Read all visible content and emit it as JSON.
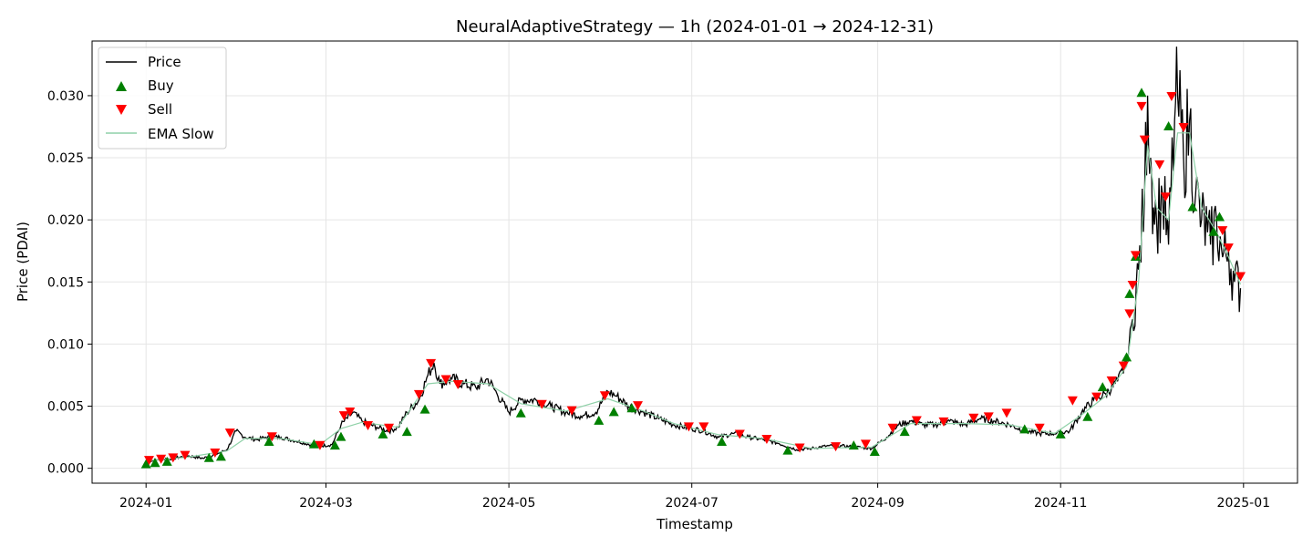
{
  "chart_data": {
    "type": "line",
    "title": "NeuralAdaptiveStrategy — 1h (2024-01-01 → 2024-12-31)",
    "xlabel": "Timestamp",
    "ylabel": "Price (PDAI)",
    "x_range": [
      "2023-12-14",
      "2025-01-19"
    ],
    "ylim": [
      -0.0012,
      0.0344
    ],
    "x_ticks": [
      "2024-01-01",
      "2024-03-01",
      "2024-05-01",
      "2024-07-01",
      "2024-09-01",
      "2024-11-01",
      "2025-01-01"
    ],
    "x_tick_labels": [
      "2024-01",
      "2024-03",
      "2024-05",
      "2024-07",
      "2024-09",
      "2024-11",
      "2025-01"
    ],
    "y_ticks": [
      0.0,
      0.005,
      0.01,
      0.015,
      0.02,
      0.025,
      0.03
    ],
    "y_tick_labels": [
      "0.000",
      "0.005",
      "0.010",
      "0.015",
      "0.020",
      "0.025",
      "0.030"
    ],
    "grid": true,
    "legend_position": "top-left",
    "legend": [
      {
        "label": "Price",
        "kind": "line",
        "color": "#000000"
      },
      {
        "label": "Buy",
        "kind": "marker-up",
        "color": "#008000"
      },
      {
        "label": "Sell",
        "kind": "marker-down",
        "color": "#ff0000"
      },
      {
        "label": "EMA Slow",
        "kind": "line",
        "color": "#8fd1a8"
      }
    ],
    "colors": {
      "price": "#000000",
      "buy": "#008000",
      "sell": "#ff0000",
      "ema": "#8fd1a8"
    },
    "price_series": {
      "name": "Price",
      "x": [
        "2024-01-01",
        "2024-01-05",
        "2024-01-10",
        "2024-01-15",
        "2024-01-20",
        "2024-01-25",
        "2024-01-28",
        "2024-01-31",
        "2024-02-03",
        "2024-02-07",
        "2024-02-10",
        "2024-02-15",
        "2024-02-20",
        "2024-02-25",
        "2024-02-28",
        "2024-03-03",
        "2024-03-06",
        "2024-03-10",
        "2024-03-13",
        "2024-03-18",
        "2024-03-22",
        "2024-03-25",
        "2024-03-28",
        "2024-04-01",
        "2024-04-04",
        "2024-04-06",
        "2024-04-08",
        "2024-04-12",
        "2024-04-16",
        "2024-04-20",
        "2024-04-24",
        "2024-04-27",
        "2024-05-01",
        "2024-05-05",
        "2024-05-10",
        "2024-05-15",
        "2024-05-20",
        "2024-05-25",
        "2024-05-30",
        "2024-06-03",
        "2024-06-06",
        "2024-06-10",
        "2024-06-15",
        "2024-06-20",
        "2024-06-25",
        "2024-07-01",
        "2024-07-05",
        "2024-07-10",
        "2024-07-15",
        "2024-07-20",
        "2024-07-25",
        "2024-07-30",
        "2024-08-05",
        "2024-08-10",
        "2024-08-15",
        "2024-08-20",
        "2024-08-25",
        "2024-08-30",
        "2024-09-04",
        "2024-09-08",
        "2024-09-12",
        "2024-09-16",
        "2024-09-20",
        "2024-09-25",
        "2024-09-30",
        "2024-10-05",
        "2024-10-10",
        "2024-10-15",
        "2024-10-20",
        "2024-10-25",
        "2024-10-30",
        "2024-11-04",
        "2024-11-08",
        "2024-11-12",
        "2024-11-16",
        "2024-11-20",
        "2024-11-23",
        "2024-11-25",
        "2024-11-27",
        "2024-11-29",
        "2024-11-30",
        "2024-12-01",
        "2024-12-02",
        "2024-12-03",
        "2024-12-05",
        "2024-12-07",
        "2024-12-09",
        "2024-12-10",
        "2024-12-12",
        "2024-12-14",
        "2024-12-16",
        "2024-12-18",
        "2024-12-20",
        "2024-12-21",
        "2024-12-23",
        "2024-12-25",
        "2024-12-27",
        "2024-12-29",
        "2024-12-31"
      ],
      "values": [
        0.0005,
        0.0007,
        0.0008,
        0.001,
        0.0008,
        0.0012,
        0.0015,
        0.003,
        0.0025,
        0.0023,
        0.0025,
        0.0025,
        0.0022,
        0.0019,
        0.0018,
        0.0019,
        0.0035,
        0.0045,
        0.0038,
        0.0033,
        0.003,
        0.0033,
        0.0045,
        0.0055,
        0.0075,
        0.0085,
        0.0068,
        0.0072,
        0.0068,
        0.0065,
        0.0072,
        0.006,
        0.0045,
        0.0055,
        0.0055,
        0.005,
        0.0045,
        0.0042,
        0.0045,
        0.0062,
        0.0058,
        0.005,
        0.0045,
        0.004,
        0.0035,
        0.0032,
        0.003,
        0.0025,
        0.0028,
        0.0025,
        0.0023,
        0.002,
        0.0015,
        0.0016,
        0.0018,
        0.0018,
        0.0017,
        0.0016,
        0.0025,
        0.0035,
        0.0038,
        0.0035,
        0.0035,
        0.0038,
        0.0035,
        0.004,
        0.0038,
        0.0035,
        0.003,
        0.0028,
        0.0028,
        0.003,
        0.0045,
        0.0055,
        0.006,
        0.007,
        0.0085,
        0.012,
        0.016,
        0.022,
        0.03,
        0.025,
        0.021,
        0.02,
        0.022,
        0.018,
        0.028,
        0.03,
        0.025,
        0.028,
        0.022,
        0.02,
        0.019,
        0.018,
        0.02,
        0.017,
        0.0175,
        0.015,
        0.0145
      ]
    },
    "ema_series": {
      "name": "EMA Slow",
      "x": [
        "2024-01-01",
        "2024-01-15",
        "2024-01-28",
        "2024-02-03",
        "2024-02-15",
        "2024-02-28",
        "2024-03-06",
        "2024-03-13",
        "2024-03-25",
        "2024-04-04",
        "2024-04-12",
        "2024-04-24",
        "2024-05-05",
        "2024-05-20",
        "2024-06-03",
        "2024-06-15",
        "2024-06-25",
        "2024-07-10",
        "2024-07-25",
        "2024-08-10",
        "2024-08-30",
        "2024-09-12",
        "2024-09-30",
        "2024-10-15",
        "2024-10-30",
        "2024-11-08",
        "2024-11-16",
        "2024-11-23",
        "2024-11-27",
        "2024-11-30",
        "2024-12-03",
        "2024-12-07",
        "2024-12-10",
        "2024-12-14",
        "2024-12-18",
        "2024-12-23",
        "2024-12-27",
        "2024-12-31"
      ],
      "values": [
        0.0006,
        0.0009,
        0.0014,
        0.0024,
        0.0024,
        0.0019,
        0.0032,
        0.0037,
        0.0033,
        0.0068,
        0.007,
        0.0068,
        0.0052,
        0.0046,
        0.0056,
        0.0046,
        0.0036,
        0.0027,
        0.0024,
        0.0016,
        0.0017,
        0.0036,
        0.0036,
        0.0035,
        0.0028,
        0.0043,
        0.0058,
        0.0082,
        0.015,
        0.026,
        0.021,
        0.02,
        0.027,
        0.027,
        0.021,
        0.019,
        0.017,
        0.0148
      ]
    },
    "buy_signals": {
      "name": "Buy",
      "x": [
        "2024-01-01",
        "2024-01-04",
        "2024-01-08",
        "2024-01-22",
        "2024-01-26",
        "2024-02-11",
        "2024-02-26",
        "2024-03-04",
        "2024-03-06",
        "2024-03-20",
        "2024-03-28",
        "2024-04-03",
        "2024-05-05",
        "2024-05-31",
        "2024-06-05",
        "2024-06-11",
        "2024-07-11",
        "2024-08-02",
        "2024-08-24",
        "2024-08-31",
        "2024-09-10",
        "2024-10-20",
        "2024-11-01",
        "2024-11-10",
        "2024-11-15",
        "2024-11-23",
        "2024-11-24",
        "2024-11-26",
        "2024-11-28",
        "2024-12-07",
        "2024-12-15",
        "2024-12-22",
        "2024-12-24"
      ],
      "values": [
        0.0003,
        0.0004,
        0.0005,
        0.0008,
        0.0009,
        0.0021,
        0.0019,
        0.0018,
        0.0025,
        0.0027,
        0.0029,
        0.0047,
        0.0044,
        0.0038,
        0.0045,
        0.0048,
        0.0021,
        0.0014,
        0.0018,
        0.0013,
        0.0029,
        0.0031,
        0.0027,
        0.0041,
        0.0065,
        0.0089,
        0.014,
        0.017,
        0.0302,
        0.0275,
        0.021,
        0.019,
        0.0202
      ]
    },
    "sell_signals": {
      "name": "Sell",
      "x": [
        "2024-01-02",
        "2024-01-06",
        "2024-01-10",
        "2024-01-14",
        "2024-01-24",
        "2024-01-29",
        "2024-02-12",
        "2024-02-28",
        "2024-03-07",
        "2024-03-09",
        "2024-03-15",
        "2024-03-22",
        "2024-04-01",
        "2024-04-05",
        "2024-04-10",
        "2024-04-14",
        "2024-05-12",
        "2024-05-22",
        "2024-06-02",
        "2024-06-13",
        "2024-06-30",
        "2024-07-05",
        "2024-07-17",
        "2024-07-26",
        "2024-08-06",
        "2024-08-18",
        "2024-08-28",
        "2024-09-06",
        "2024-09-14",
        "2024-09-23",
        "2024-10-03",
        "2024-10-08",
        "2024-10-14",
        "2024-10-25",
        "2024-11-05",
        "2024-11-13",
        "2024-11-18",
        "2024-11-22",
        "2024-11-24",
        "2024-11-25",
        "2024-11-26",
        "2024-11-28",
        "2024-11-29",
        "2024-12-04",
        "2024-12-06",
        "2024-12-08",
        "2024-12-12",
        "2024-12-25",
        "2024-12-27",
        "2024-12-31"
      ],
      "values": [
        0.0007,
        0.0008,
        0.0009,
        0.0011,
        0.0013,
        0.0029,
        0.0026,
        0.0019,
        0.0043,
        0.0046,
        0.0035,
        0.0033,
        0.006,
        0.0085,
        0.0072,
        0.0068,
        0.0052,
        0.0047,
        0.0059,
        0.0051,
        0.0034,
        0.0034,
        0.0028,
        0.0024,
        0.0017,
        0.0018,
        0.002,
        0.0033,
        0.0039,
        0.0038,
        0.0041,
        0.0042,
        0.0045,
        0.0033,
        0.0055,
        0.0058,
        0.0071,
        0.0083,
        0.0125,
        0.0148,
        0.0172,
        0.0292,
        0.0265,
        0.0245,
        0.0219,
        0.03,
        0.0275,
        0.0192,
        0.0178,
        0.0155
      ]
    }
  }
}
